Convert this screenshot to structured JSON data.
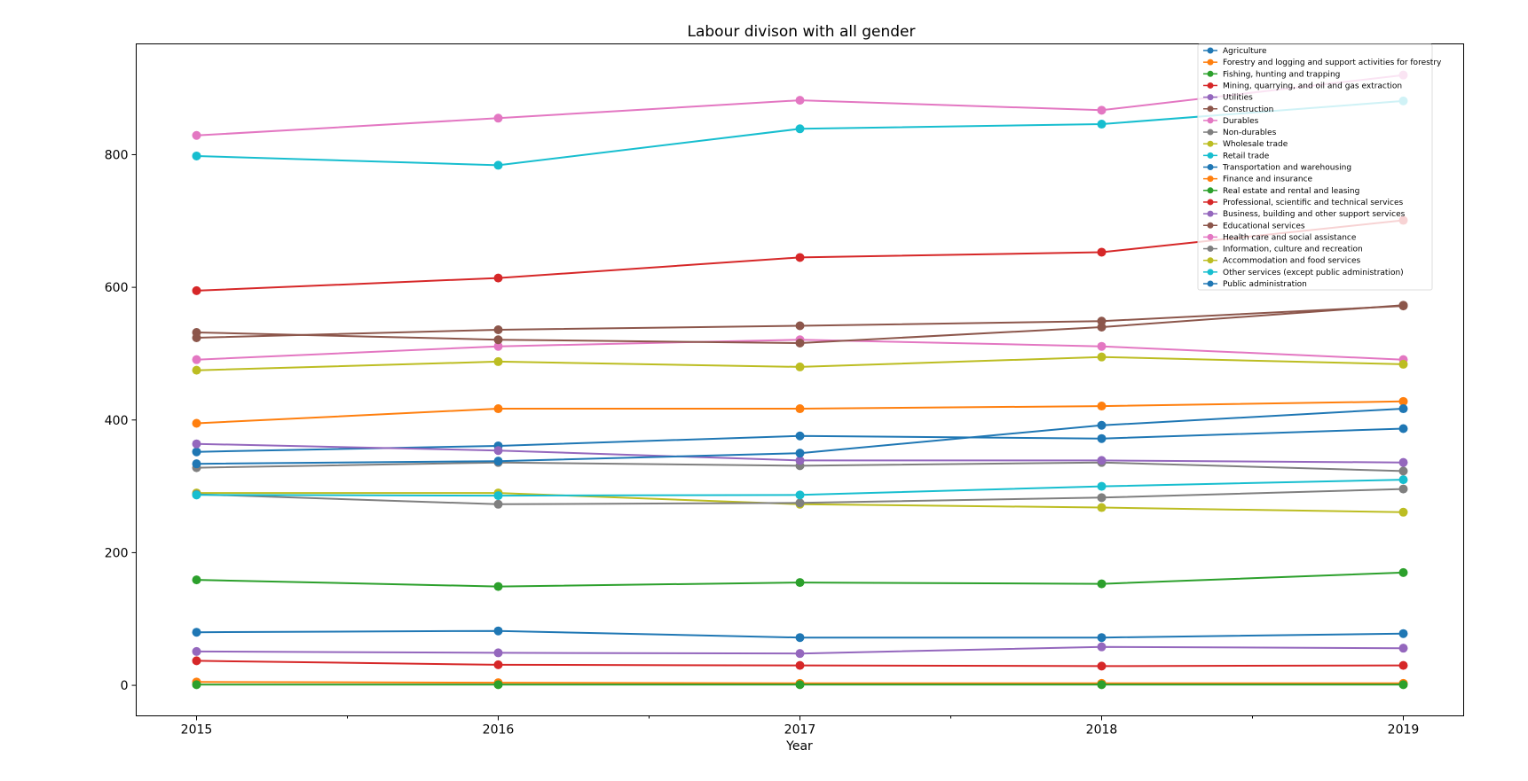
{
  "chart_data": {
    "type": "line",
    "title": "Labour divison with all gender",
    "xlabel": "Year",
    "ylabel": "",
    "x": [
      2015,
      2016,
      2017,
      2018,
      2019
    ],
    "xlim": [
      2014.8,
      2019.2
    ],
    "ylim": [
      -46,
      967
    ],
    "yticks": [
      0,
      200,
      400,
      600,
      800
    ],
    "grid": false,
    "legend_position": "top-right",
    "series": [
      {
        "name": "Agriculture",
        "color": "#1f77b4",
        "values": [
          80,
          82,
          72,
          72,
          78
        ]
      },
      {
        "name": "Forestry and logging and support activities for forestry",
        "color": "#ff7f0e",
        "values": [
          5,
          4,
          3,
          3,
          3
        ]
      },
      {
        "name": "Fishing, hunting and trapping",
        "color": "#2ca02c",
        "values": [
          1,
          1,
          1,
          1,
          1
        ]
      },
      {
        "name": "Mining, quarrying, and oil and gas extraction",
        "color": "#d62728",
        "values": [
          37,
          31,
          30,
          29,
          30
        ]
      },
      {
        "name": "Utilities",
        "color": "#9467bd",
        "values": [
          51,
          49,
          48,
          58,
          56
        ]
      },
      {
        "name": "Construction",
        "color": "#8c564b",
        "values": [
          524,
          536,
          542,
          549,
          572
        ]
      },
      {
        "name": "Durables",
        "color": "#e377c2",
        "values": [
          491,
          511,
          521,
          511,
          491
        ]
      },
      {
        "name": "Non-durables",
        "color": "#7f7f7f",
        "values": [
          328,
          336,
          331,
          336,
          323
        ]
      },
      {
        "name": "Wholesale trade",
        "color": "#bcbd22",
        "values": [
          290,
          290,
          273,
          268,
          261
        ]
      },
      {
        "name": "Retail trade",
        "color": "#17becf",
        "values": [
          798,
          784,
          839,
          846,
          881
        ]
      },
      {
        "name": "Transportation and warehousing",
        "color": "#1f77b4",
        "values": [
          352,
          361,
          376,
          372,
          387
        ]
      },
      {
        "name": "Finance and insurance",
        "color": "#ff7f0e",
        "values": [
          395,
          417,
          417,
          421,
          428
        ]
      },
      {
        "name": "Real estate and rental and leasing",
        "color": "#2ca02c",
        "values": [
          159,
          149,
          155,
          153,
          170
        ]
      },
      {
        "name": "Professional, scientific and technical services",
        "color": "#d62728",
        "values": [
          595,
          614,
          645,
          653,
          701
        ]
      },
      {
        "name": "Business, building and other support services",
        "color": "#9467bd",
        "values": [
          364,
          354,
          339,
          339,
          336
        ]
      },
      {
        "name": "Educational services",
        "color": "#8c564b",
        "values": [
          532,
          521,
          516,
          540,
          573
        ]
      },
      {
        "name": "Health care and social assistance",
        "color": "#e377c2",
        "values": [
          829,
          855,
          882,
          867,
          920
        ]
      },
      {
        "name": "Information, culture and recreation",
        "color": "#7f7f7f",
        "values": [
          288,
          273,
          275,
          283,
          296
        ]
      },
      {
        "name": "Accommodation and food services",
        "color": "#bcbd22",
        "values": [
          475,
          488,
          480,
          495,
          484
        ]
      },
      {
        "name": "Other services (except public administration)",
        "color": "#17becf",
        "values": [
          287,
          286,
          287,
          300,
          310
        ]
      },
      {
        "name": "Public administration",
        "color": "#1f77b4",
        "values": [
          334,
          338,
          350,
          392,
          417
        ]
      }
    ]
  }
}
